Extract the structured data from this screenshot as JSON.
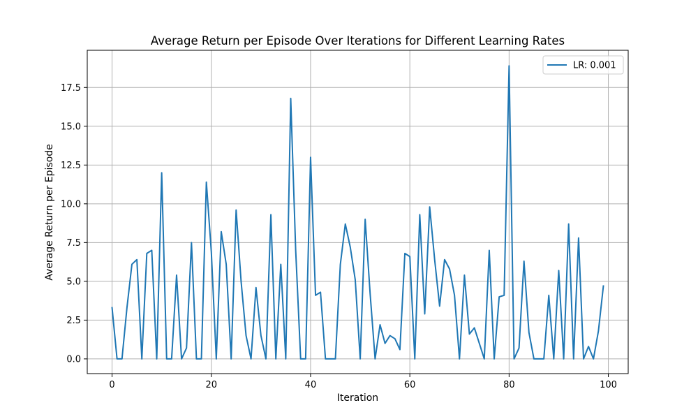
{
  "chart_data": {
    "type": "line",
    "title": "Average Return per Episode Over Iterations for Different Learning Rates",
    "xlabel": "Iteration",
    "ylabel": "Average Return per Episode",
    "xlim": [
      -5,
      104
    ],
    "ylim": [
      -0.95,
      19.9
    ],
    "xticks": [
      0,
      20,
      40,
      60,
      80,
      100
    ],
    "xtick_labels": [
      "0",
      "20",
      "40",
      "60",
      "80",
      "100"
    ],
    "yticks": [
      0,
      2.5,
      5,
      7.5,
      10,
      12.5,
      15,
      17.5
    ],
    "ytick_labels": [
      "0.0",
      "2.5",
      "5.0",
      "7.5",
      "10.0",
      "12.5",
      "15.0",
      "17.5"
    ],
    "grid": true,
    "legend_position": "upper right",
    "series": [
      {
        "name": "LR: 0.001",
        "color": "#1f77b4",
        "x": [
          0,
          1,
          2,
          3,
          4,
          5,
          6,
          7,
          8,
          9,
          10,
          11,
          12,
          13,
          14,
          15,
          16,
          17,
          18,
          19,
          20,
          21,
          22,
          23,
          24,
          25,
          26,
          27,
          28,
          29,
          30,
          31,
          32,
          33,
          34,
          35,
          36,
          37,
          38,
          39,
          40,
          41,
          42,
          43,
          44,
          45,
          46,
          47,
          48,
          49,
          50,
          51,
          52,
          53,
          54,
          55,
          56,
          57,
          58,
          59,
          60,
          61,
          62,
          63,
          64,
          65,
          66,
          67,
          68,
          69,
          70,
          71,
          72,
          73,
          74,
          75,
          76,
          77,
          78,
          79,
          80,
          81,
          82,
          83,
          84,
          85,
          86,
          87,
          88,
          89,
          90,
          91,
          92,
          93,
          94,
          95,
          96,
          97,
          98,
          99
        ],
        "y": [
          3.3,
          0,
          0,
          3.3,
          6.1,
          6.4,
          0,
          6.8,
          7.0,
          0,
          12.0,
          0,
          0,
          5.4,
          0,
          0.7,
          7.5,
          0,
          0,
          11.4,
          6.9,
          0,
          8.2,
          6.1,
          0,
          9.6,
          5.0,
          1.5,
          0,
          4.6,
          1.5,
          0,
          9.3,
          0,
          6.1,
          0,
          16.8,
          7.0,
          0,
          0,
          13.0,
          4.1,
          4.3,
          0,
          0,
          0,
          6.1,
          8.7,
          7.2,
          5.1,
          0,
          9.0,
          4.2,
          0,
          2.2,
          1.0,
          1.5,
          1.3,
          0.6,
          6.8,
          6.6,
          0,
          9.3,
          2.9,
          9.8,
          6.4,
          3.4,
          6.4,
          5.8,
          4.1,
          0,
          5.4,
          1.6,
          2.0,
          1.0,
          0,
          7.0,
          0,
          4.0,
          4.1,
          18.9,
          0,
          0.7,
          6.3,
          1.7,
          0,
          0,
          0,
          4.1,
          0,
          5.7,
          0,
          8.7,
          0,
          7.8,
          0,
          0.8,
          0,
          1.8,
          4.7
        ]
      }
    ]
  }
}
